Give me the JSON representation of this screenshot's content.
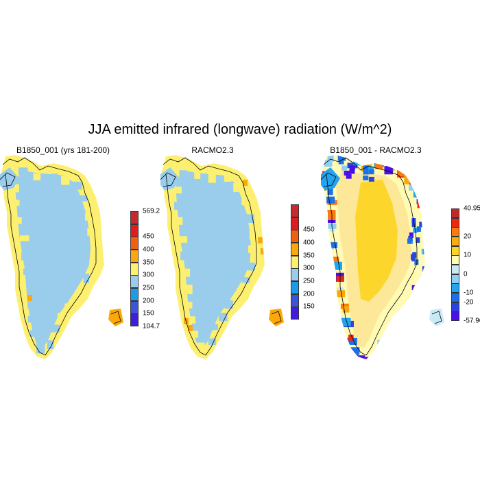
{
  "title": "JJA emitted infrared (longwave) radiation (W/m^2)",
  "panels": [
    {
      "title": "B1850_001 (yrs 181-200)",
      "colorbar": {
        "colors": [
          "#3f1dde",
          "#3b55d6",
          "#1a9ce8",
          "#99cdeb",
          "#fdf070",
          "#fba80a",
          "#f06010",
          "#e01c20",
          "#c62a2e"
        ],
        "labels": [
          "104.7",
          "150",
          "200",
          "250",
          "300",
          "350",
          "400",
          "450",
          "569.2"
        ]
      }
    },
    {
      "title": "RACMO2.3",
      "colorbar": {
        "colors": [
          "#3f1dde",
          "#3b55d6",
          "#1a9ce8",
          "#99cdeb",
          "#fdf070",
          "#fba80a",
          "#f06010",
          "#e01c20",
          "#c62a2e"
        ],
        "labels": [
          "",
          "150",
          "200",
          "250",
          "300",
          "350",
          "400",
          "450",
          ""
        ]
      }
    },
    {
      "title": "B1850_001 - RACMO2.3",
      "colorbar": {
        "colors": [
          "#4b10e8",
          "#2a44e0",
          "#1c70e8",
          "#22a4ee",
          "#8fd0f2",
          "#c9eaf5",
          "#fffbb4",
          "#fdd62c",
          "#fbac10",
          "#f87a10",
          "#ea2a10",
          "#c0282c"
        ],
        "labels": [
          "-57.96",
          "",
          "-20",
          "-10",
          "",
          "0",
          "",
          "10",
          "",
          "20",
          "",
          "40.95"
        ]
      }
    }
  ]
}
